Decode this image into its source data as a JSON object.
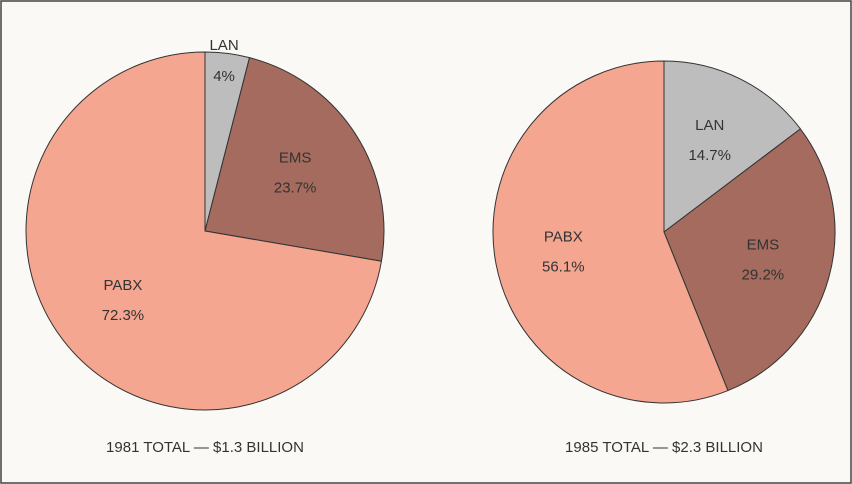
{
  "chart_data": [
    {
      "type": "pie",
      "title": "1981 TOTAL — $1.3 BILLION",
      "categories": [
        "LAN",
        "EMS",
        "PABX"
      ],
      "values": [
        4,
        23.7,
        72.3
      ],
      "value_labels": [
        "4%",
        "23.7%",
        "72.3%"
      ],
      "colors": [
        "#bdbdbd",
        "#a46b5e",
        "#f4a690"
      ]
    },
    {
      "type": "pie",
      "title": "1985 TOTAL — $2.3 BILLION",
      "categories": [
        "LAN",
        "EMS",
        "PABX"
      ],
      "values": [
        14.7,
        29.2,
        56.1
      ],
      "value_labels": [
        "14.7%",
        "29.2%",
        "56.1%"
      ],
      "colors": [
        "#bdbdbd",
        "#a46b5e",
        "#f4a690"
      ]
    }
  ]
}
